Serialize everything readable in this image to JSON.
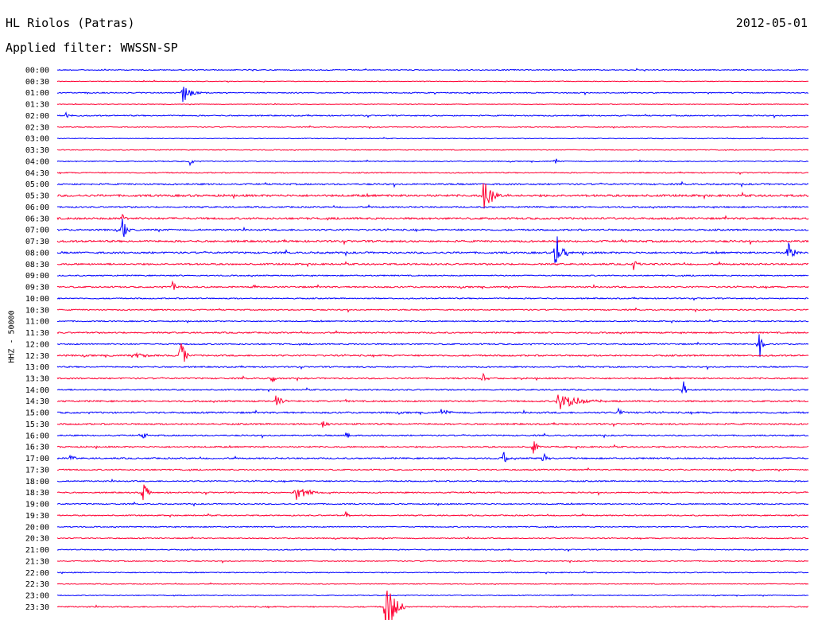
{
  "header": {
    "station": "HL Riolos (Patras)",
    "date": "2012-05-01",
    "filter": "Applied filter: WWSSN-SP"
  },
  "channel_label": "HHZ - 50000",
  "colors": {
    "blue": "#0000ff",
    "red": "#ff0033",
    "text": "#000000",
    "background": "#ffffff"
  },
  "chart_data": {
    "type": "line",
    "title": "HL Riolos (Patras)",
    "date": "2012-05-01",
    "filter": "WWSSN-SP",
    "ylabel": "HHZ - 50000",
    "row_minutes": 30,
    "row_labels": [
      "00:00",
      "00:30",
      "01:00",
      "01:30",
      "02:00",
      "02:30",
      "03:00",
      "03:30",
      "04:00",
      "04:30",
      "05:00",
      "05:30",
      "06:00",
      "06:30",
      "07:00",
      "07:30",
      "08:00",
      "08:30",
      "09:00",
      "09:30",
      "10:00",
      "10:30",
      "11:00",
      "11:30",
      "12:00",
      "12:30",
      "13:00",
      "13:30",
      "14:00",
      "14:30",
      "15:00",
      "15:30",
      "16:00",
      "16:30",
      "17:00",
      "17:30",
      "18:00",
      "18:30",
      "19:00",
      "19:30",
      "20:00",
      "20:30",
      "21:00",
      "21:30",
      "22:00",
      "22:30",
      "23:00",
      "23:30"
    ],
    "row_colors": [
      "blue",
      "red"
    ],
    "noise_levels": [
      0.8,
      0.6,
      0.9,
      0.5,
      1.0,
      0.7,
      0.6,
      0.7,
      0.8,
      0.9,
      1.3,
      1.8,
      1.2,
      1.6,
      1.4,
      1.6,
      1.5,
      1.4,
      1.0,
      1.3,
      1.0,
      1.0,
      1.0,
      1.2,
      1.1,
      1.3,
      1.1,
      1.2,
      1.1,
      1.3,
      1.4,
      1.3,
      1.1,
      1.2,
      1.2,
      1.1,
      1.1,
      1.1,
      1.0,
      1.0,
      0.9,
      0.9,
      0.9,
      0.8,
      0.8,
      0.7,
      0.7,
      1.0
    ],
    "events": [
      {
        "row": 2,
        "minute": 5.0,
        "amplitude": 14,
        "duration_min": 0.8
      },
      {
        "row": 4,
        "minute": 0.3,
        "amplitude": 5,
        "duration_min": 0.5
      },
      {
        "row": 8,
        "minute": 5.3,
        "amplitude": 6,
        "duration_min": 0.3
      },
      {
        "row": 8,
        "minute": 19.9,
        "amplitude": 6,
        "duration_min": 0.2
      },
      {
        "row": 11,
        "minute": 17.0,
        "amplitude": 24,
        "duration_min": 1.0
      },
      {
        "row": 13,
        "minute": 2.6,
        "amplitude": 6,
        "duration_min": 0.3
      },
      {
        "row": 14,
        "minute": 2.6,
        "amplitude": 18,
        "duration_min": 0.4
      },
      {
        "row": 16,
        "minute": 19.9,
        "amplitude": 45,
        "duration_min": 0.5
      },
      {
        "row": 16,
        "minute": 29.2,
        "amplitude": 26,
        "duration_min": 0.5
      },
      {
        "row": 17,
        "minute": 23.0,
        "amplitude": 12,
        "duration_min": 0.3
      },
      {
        "row": 19,
        "minute": 4.6,
        "amplitude": 6,
        "duration_min": 0.4
      },
      {
        "row": 19,
        "minute": 7.9,
        "amplitude": 6,
        "duration_min": 0.3
      },
      {
        "row": 24,
        "minute": 28.0,
        "amplitude": 35,
        "duration_min": 0.3
      },
      {
        "row": 25,
        "minute": 4.9,
        "amplitude": 30,
        "duration_min": 0.4
      },
      {
        "row": 25,
        "minute": 3.1,
        "amplitude": 5,
        "duration_min": 0.8
      },
      {
        "row": 27,
        "minute": 8.6,
        "amplitude": 10,
        "duration_min": 0.3
      },
      {
        "row": 27,
        "minute": 17.0,
        "amplitude": 9,
        "duration_min": 0.3
      },
      {
        "row": 28,
        "minute": 25.0,
        "amplitude": 14,
        "duration_min": 0.3
      },
      {
        "row": 29,
        "minute": 8.7,
        "amplitude": 12,
        "duration_min": 0.5
      },
      {
        "row": 29,
        "minute": 20.0,
        "amplitude": 12,
        "duration_min": 2.2
      },
      {
        "row": 30,
        "minute": 15.3,
        "amplitude": 7,
        "duration_min": 0.6
      },
      {
        "row": 30,
        "minute": 22.4,
        "amplitude": 6,
        "duration_min": 0.3
      },
      {
        "row": 31,
        "minute": 10.6,
        "amplitude": 6,
        "duration_min": 0.4
      },
      {
        "row": 32,
        "minute": 11.5,
        "amplitude": 6,
        "duration_min": 0.4
      },
      {
        "row": 32,
        "minute": 3.4,
        "amplitude": 5,
        "duration_min": 0.4
      },
      {
        "row": 33,
        "minute": 19.0,
        "amplitude": 12,
        "duration_min": 0.3
      },
      {
        "row": 34,
        "minute": 0.5,
        "amplitude": 6,
        "duration_min": 0.4
      },
      {
        "row": 34,
        "minute": 17.8,
        "amplitude": 14,
        "duration_min": 0.3
      },
      {
        "row": 34,
        "minute": 19.4,
        "amplitude": 12,
        "duration_min": 0.3
      },
      {
        "row": 37,
        "minute": 3.4,
        "amplitude": 16,
        "duration_min": 0.5
      },
      {
        "row": 37,
        "minute": 9.5,
        "amplitude": 14,
        "duration_min": 1.0
      },
      {
        "row": 39,
        "minute": 11.5,
        "amplitude": 6,
        "duration_min": 0.3
      },
      {
        "row": 47,
        "minute": 13.1,
        "amplitude": 50,
        "duration_min": 0.8
      }
    ]
  }
}
